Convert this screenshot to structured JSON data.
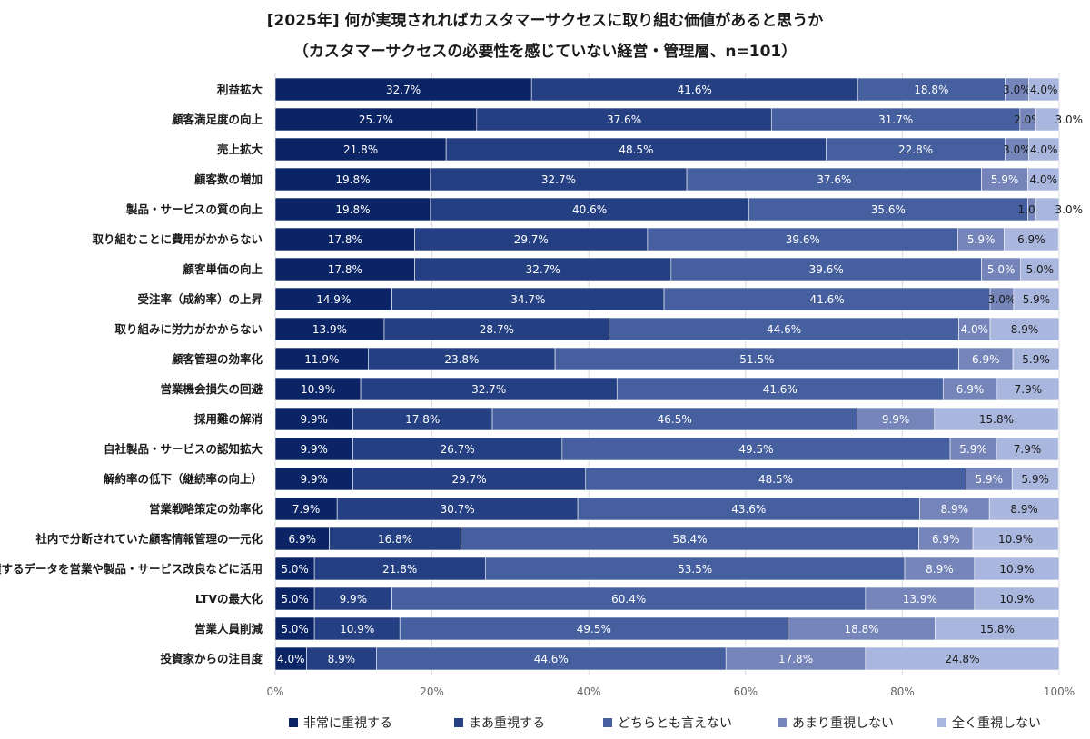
{
  "chart_data": {
    "type": "bar",
    "orientation": "horizontal",
    "stacked": true,
    "title": "[2025年] 何が実現されればカスタマーサクセスに取り組む価値があると思うか",
    "subtitle": "（カスタマーサクセスの必要性を感じていない経営・管理層、n=101）",
    "xlim": [
      0,
      100
    ],
    "x_ticks": [
      "0%",
      "20%",
      "40%",
      "60%",
      "80%",
      "100%"
    ],
    "grid": true,
    "legend_position": "bottom",
    "categories": [
      "利益拡大",
      "顧客満足度の向上",
      "売上拡大",
      "顧客数の増加",
      "製品・サービスの質の向上",
      "取り組むことに費用がかからない",
      "顧客単価の向上",
      "受注率（成約率）の上昇",
      "取り組みに労力がかからない",
      "顧客管理の効率化",
      "営業機会損失の回避",
      "採用難の解消",
      "自社製品・サービスの認知拡大",
      "解約率の低下（継続率の向上）",
      "営業戦略策定の効率化",
      "社内で分断されていた顧客情報管理の一元化",
      "蓄積するデータを営業や製品・サービス改良などに活用",
      "LTVの最大化",
      "営業人員削減",
      "投資家からの注目度"
    ],
    "series": [
      {
        "name": "非常に重視する",
        "color": "#0b2466",
        "values": [
          32.7,
          25.7,
          21.8,
          19.8,
          19.8,
          17.8,
          17.8,
          14.9,
          13.9,
          11.9,
          10.9,
          9.9,
          9.9,
          9.9,
          7.9,
          6.9,
          5.0,
          5.0,
          5.0,
          4.0
        ]
      },
      {
        "name": "まあ重視する",
        "color": "#243f82",
        "values": [
          41.6,
          37.6,
          48.5,
          32.7,
          40.6,
          29.7,
          32.7,
          34.7,
          28.7,
          23.8,
          32.7,
          17.8,
          26.7,
          29.7,
          30.7,
          16.8,
          21.8,
          9.9,
          10.9,
          8.9
        ]
      },
      {
        "name": "どちらとも言えない",
        "color": "#46609f",
        "values": [
          18.8,
          31.7,
          22.8,
          37.6,
          35.6,
          39.6,
          39.6,
          41.6,
          44.6,
          51.5,
          41.6,
          46.5,
          49.5,
          48.5,
          43.6,
          58.4,
          53.5,
          60.4,
          49.5,
          44.6
        ]
      },
      {
        "name": "あまり重視しない",
        "color": "#7585ba",
        "values": [
          3.0,
          2.0,
          3.0,
          5.9,
          1.0,
          5.9,
          5.0,
          3.0,
          4.0,
          6.9,
          6.9,
          9.9,
          5.9,
          5.9,
          8.9,
          6.9,
          8.9,
          13.9,
          18.8,
          17.8
        ]
      },
      {
        "name": "全く重視しない",
        "color": "#a9b6de",
        "values": [
          4.0,
          3.0,
          4.0,
          4.0,
          3.0,
          6.9,
          5.0,
          5.9,
          8.9,
          5.9,
          7.9,
          15.8,
          7.9,
          5.9,
          8.9,
          10.9,
          10.9,
          10.9,
          15.8,
          24.8
        ]
      }
    ],
    "value_labels": [
      [
        "32.7%",
        "41.6%",
        "18.8%",
        "3.0%",
        "4.0%"
      ],
      [
        "25.7%",
        "37.6%",
        "31.7%",
        "2.0%",
        "3.0%"
      ],
      [
        "21.8%",
        "48.5%",
        "22.8%",
        "3.0%",
        "4.0%"
      ],
      [
        "19.8%",
        "32.7%",
        "37.6%",
        "5.9%",
        "4.0%"
      ],
      [
        "19.8%",
        "40.6%",
        "35.6%",
        "1.0%",
        "3.0%"
      ],
      [
        "17.8%",
        "29.7%",
        "39.6%",
        "5.9%",
        "6.9%"
      ],
      [
        "17.8%",
        "32.7%",
        "39.6%",
        "5.0%",
        "5.0%"
      ],
      [
        "14.9%",
        "34.7%",
        "41.6%",
        "3.0%",
        "5.9%"
      ],
      [
        "13.9%",
        "28.7%",
        "44.6%",
        "4.0%",
        "8.9%"
      ],
      [
        "11.9%",
        "23.8%",
        "51.5%",
        "6.9%",
        "5.9%"
      ],
      [
        "10.9%",
        "32.7%",
        "41.6%",
        "6.9%",
        "7.9%"
      ],
      [
        "9.9%",
        "17.8%",
        "46.5%",
        "9.9%",
        "15.8%"
      ],
      [
        "9.9%",
        "26.7%",
        "49.5%",
        "5.9%",
        "7.9%"
      ],
      [
        "9.9%",
        "29.7%",
        "48.5%",
        "5.9%",
        "5.9%"
      ],
      [
        "7.9%",
        "30.7%",
        "43.6%",
        "8.9%",
        "8.9%"
      ],
      [
        "6.9%",
        "16.8%",
        "58.4%",
        "6.9%",
        "10.9%"
      ],
      [
        "5.0%",
        "21.8%",
        "53.5%",
        "8.9%",
        "10.9%"
      ],
      [
        "5.0%",
        "9.9%",
        "60.4%",
        "13.9%",
        "10.9%"
      ],
      [
        "5.0%",
        "10.9%",
        "49.5%",
        "18.8%",
        "15.8%"
      ],
      [
        "4.0%",
        "8.9%",
        "44.6%",
        "17.8%",
        "24.8%"
      ]
    ]
  }
}
